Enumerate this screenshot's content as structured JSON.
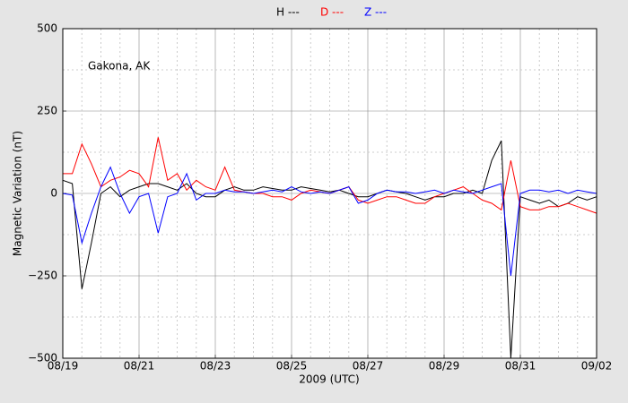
{
  "chart_data": {
    "type": "line",
    "xlabel": "2009 (UTC)",
    "ylabel": "Magnetic Variation (nT)",
    "annotation": "Gakona, AK",
    "xlim": [
      0,
      14
    ],
    "xticks": [
      {
        "value": 0,
        "label": "08/19"
      },
      {
        "value": 2,
        "label": "08/21"
      },
      {
        "value": 4,
        "label": "08/23"
      },
      {
        "value": 6,
        "label": "08/25"
      },
      {
        "value": 8,
        "label": "08/27"
      },
      {
        "value": 10,
        "label": "08/29"
      },
      {
        "value": 12,
        "label": "08/31"
      },
      {
        "value": 14,
        "label": "09/02"
      }
    ],
    "minor_xticks": [
      0.5,
      1,
      1.5,
      2.5,
      3,
      3.5,
      4.5,
      5,
      5.5,
      6.5,
      7,
      7.5,
      8.5,
      9,
      9.5,
      10.5,
      11,
      11.5,
      12.5,
      13,
      13.5
    ],
    "ylim": [
      -500,
      500
    ],
    "yticks": [
      {
        "value": -500,
        "label": "−500"
      },
      {
        "value": -250,
        "label": "−250"
      },
      0,
      250,
      500
    ],
    "minor_yticks": [
      -375,
      -125,
      125,
      375
    ],
    "grid": true,
    "x": [
      0,
      0.25,
      0.5,
      0.75,
      1,
      1.25,
      1.5,
      1.75,
      2,
      2.25,
      2.5,
      2.75,
      3,
      3.25,
      3.5,
      3.75,
      4,
      4.25,
      4.5,
      4.75,
      5,
      5.25,
      5.5,
      5.75,
      6,
      6.25,
      6.5,
      6.75,
      7,
      7.25,
      7.5,
      7.75,
      8,
      8.25,
      8.5,
      8.75,
      9,
      9.25,
      9.5,
      9.75,
      10,
      10.25,
      10.5,
      10.75,
      11,
      11.25,
      11.5,
      11.75,
      12,
      12.25,
      12.5,
      12.75,
      13,
      13.25,
      13.5,
      13.75,
      14
    ],
    "series": [
      {
        "name": "H ---",
        "color": "#000000",
        "values": [
          40,
          30,
          -290,
          -150,
          0,
          20,
          -10,
          10,
          20,
          30,
          30,
          20,
          10,
          30,
          0,
          -10,
          -10,
          10,
          20,
          10,
          10,
          20,
          15,
          10,
          10,
          20,
          15,
          10,
          5,
          10,
          0,
          -10,
          -10,
          0,
          10,
          5,
          0,
          -10,
          -20,
          -10,
          -10,
          0,
          0,
          10,
          0,
          100,
          160,
          -500,
          -10,
          -20,
          -30,
          -20,
          -40,
          -30,
          -10,
          -20,
          -10
        ]
      },
      {
        "name": "D ---",
        "color": "#ff0000",
        "values": [
          60,
          60,
          150,
          90,
          20,
          40,
          50,
          70,
          60,
          20,
          170,
          40,
          60,
          10,
          40,
          20,
          10,
          80,
          10,
          5,
          0,
          0,
          -10,
          -10,
          -20,
          0,
          10,
          5,
          0,
          10,
          20,
          -20,
          -30,
          -20,
          -10,
          -10,
          -20,
          -30,
          -30,
          -10,
          0,
          10,
          20,
          0,
          -20,
          -30,
          -50,
          100,
          -40,
          -50,
          -50,
          -40,
          -40,
          -30,
          -40,
          -50,
          -60
        ]
      },
      {
        "name": "Z ---",
        "color": "#0000ff",
        "values": [
          0,
          -5,
          -150,
          -60,
          20,
          80,
          0,
          -60,
          -10,
          0,
          -120,
          -10,
          0,
          60,
          -20,
          0,
          0,
          10,
          5,
          5,
          0,
          5,
          10,
          5,
          20,
          5,
          0,
          5,
          0,
          10,
          20,
          -30,
          -20,
          0,
          10,
          5,
          5,
          0,
          5,
          10,
          0,
          10,
          5,
          0,
          10,
          20,
          30,
          -250,
          0,
          10,
          10,
          5,
          10,
          0,
          10,
          5,
          0
        ]
      }
    ]
  }
}
